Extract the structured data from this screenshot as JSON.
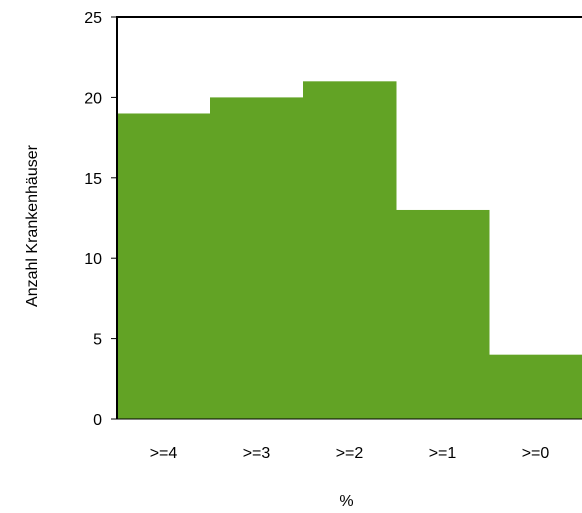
{
  "chart_data": {
    "type": "bar",
    "categories": [
      ">=4",
      ">=3",
      ">=2",
      ">=1",
      ">=0"
    ],
    "values": [
      19,
      20,
      21,
      13,
      4
    ],
    "title": "",
    "xlabel": "%",
    "ylabel": "Anzahl Krankenhäuser",
    "ylim": [
      0,
      25
    ],
    "yticks": [
      0,
      5,
      10,
      15,
      20,
      25
    ],
    "grid": false,
    "legend": "none",
    "colors": {
      "bar": "#62a325",
      "axis": "#000000",
      "background": "#ffffff"
    }
  }
}
